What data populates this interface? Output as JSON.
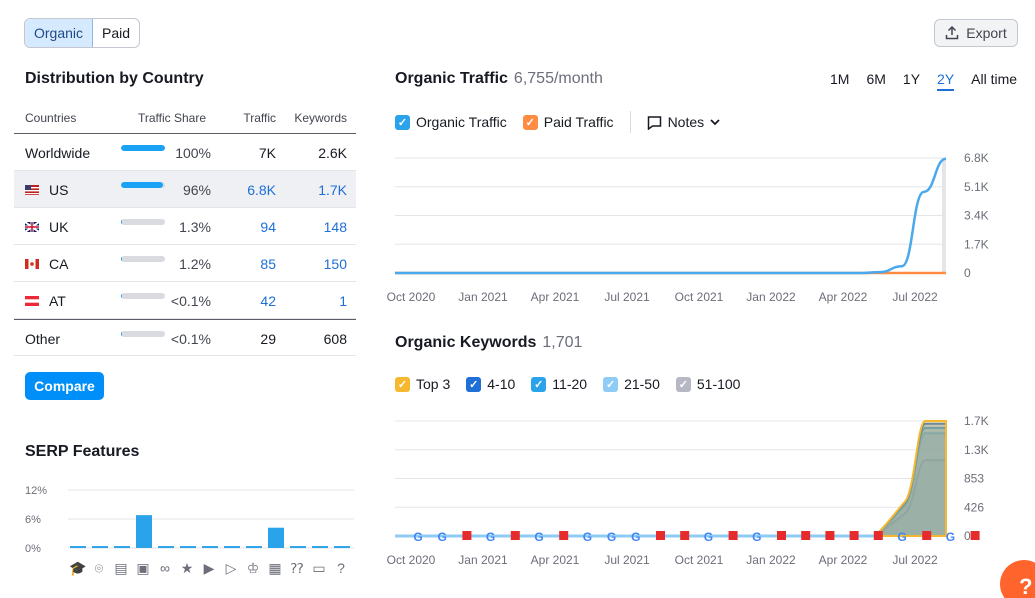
{
  "toggle": {
    "organic": "Organic",
    "paid": "Paid"
  },
  "export_label": "Export",
  "distribution": {
    "title": "Distribution by Country",
    "headers": {
      "countries": "Countries",
      "share": "Traffic Share",
      "traffic": "Traffic",
      "keywords": "Keywords"
    },
    "rows": [
      {
        "name": "Worldwide",
        "share": "100%",
        "share_pct": 100,
        "traffic": "7K",
        "keywords": "2.6K",
        "link": false
      },
      {
        "name": "US",
        "share": "96%",
        "share_pct": 96,
        "traffic": "6.8K",
        "keywords": "1.7K",
        "link": true
      },
      {
        "name": "UK",
        "share": "1.3%",
        "share_pct": 1.3,
        "traffic": "94",
        "keywords": "148",
        "link": true
      },
      {
        "name": "CA",
        "share": "1.2%",
        "share_pct": 1.2,
        "traffic": "85",
        "keywords": "150",
        "link": true
      },
      {
        "name": "AT",
        "share": "<0.1%",
        "share_pct": 0.1,
        "traffic": "42",
        "keywords": "1",
        "link": true
      },
      {
        "name": "Other",
        "share": "<0.1%",
        "share_pct": 0.1,
        "traffic": "29",
        "keywords": "608",
        "link": false
      }
    ],
    "compare_label": "Compare"
  },
  "serp": {
    "title": "SERP Features",
    "chart_data": {
      "type": "bar",
      "ylim": [
        0,
        12
      ],
      "ticks": [
        "12%",
        "6%",
        "0%"
      ],
      "values": [
        0.4,
        0.4,
        0.4,
        6.8,
        0.4,
        0.4,
        0.4,
        0.4,
        0.4,
        4.2,
        0.4,
        0.4,
        0.4
      ]
    },
    "icons": [
      "graduation-icon",
      "pin-icon",
      "doc-icon",
      "image-icon",
      "link-icon",
      "star-icon",
      "play-icon",
      "video-icon",
      "crown-icon",
      "gallery-icon",
      "question-icon",
      "chat-icon",
      "faq-icon"
    ]
  },
  "organic_traffic": {
    "title": "Organic Traffic",
    "value": "6,755/month",
    "ranges": [
      "1M",
      "6M",
      "1Y",
      "2Y",
      "All time"
    ],
    "selected_range": "2Y",
    "legend": {
      "organic": "Organic Traffic",
      "paid": "Paid Traffic",
      "notes": "Notes"
    },
    "chart_data": {
      "type": "line",
      "x_ticks": [
        "Oct 2020",
        "Jan 2021",
        "Apr 2021",
        "Jul 2021",
        "Oct 2021",
        "Jan 2022",
        "Apr 2022",
        "Jul 2022"
      ],
      "y_ticks": [
        "6.8K",
        "5.1K",
        "3.4K",
        "1.7K",
        "0"
      ],
      "ylim": [
        0,
        6800
      ],
      "series": [
        {
          "name": "Organic Traffic",
          "color": "#4aa9ec",
          "values": [
            0,
            0,
            0,
            0,
            0,
            0,
            0,
            0,
            0,
            0,
            0,
            0,
            0,
            0,
            0,
            0,
            0,
            0,
            0,
            0,
            0,
            0,
            50,
            400,
            4800,
            6755
          ]
        },
        {
          "name": "Paid Traffic",
          "color": "#ff8c42",
          "values": [
            0,
            0,
            0,
            0,
            0,
            0,
            0,
            0,
            0,
            0,
            0,
            0,
            0,
            0,
            0,
            0,
            0,
            0,
            0,
            0,
            0,
            0,
            0,
            0,
            0,
            0
          ]
        }
      ]
    }
  },
  "organic_keywords": {
    "title": "Organic Keywords",
    "value": "1,701",
    "legend": [
      "Top 3",
      "4-10",
      "11-20",
      "21-50",
      "51-100"
    ],
    "legend_colors": [
      "#f5b82e",
      "#1e6fd6",
      "#2ba3ea",
      "#8ecbf5",
      "#b6b9c4"
    ],
    "chart_data": {
      "type": "area",
      "x_ticks": [
        "Oct 2020",
        "Jan 2021",
        "Apr 2021",
        "Jul 2021",
        "Oct 2021",
        "Jan 2022",
        "Apr 2022",
        "Jul 2022"
      ],
      "y_ticks": [
        "1.7K",
        "1.3K",
        "853",
        "426",
        "0"
      ],
      "ylim": [
        0,
        1701
      ]
    }
  }
}
